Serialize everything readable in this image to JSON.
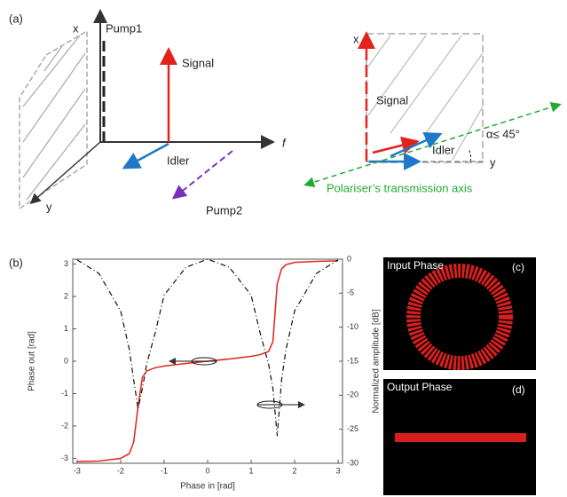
{
  "figure": {
    "panel_a": {
      "label": "(a)",
      "left": {
        "x_axis": "x",
        "pump1": "Pump1",
        "signal": "Signal",
        "idler": "Idler",
        "f_axis": "f",
        "y_axis": "y",
        "pump2": "Pump2"
      },
      "right": {
        "x_axis": "x",
        "signal": "Signal",
        "idler": "Idler",
        "angle": "α≤ 45°",
        "y_axis": "y",
        "polariser": "Polariser’s transmission axis"
      }
    },
    "panel_b": {
      "label": "(b)"
    },
    "panel_c": {
      "label": "(c)",
      "title": "Input Phase"
    },
    "panel_d": {
      "label": "(d)",
      "title": "Output Phase"
    }
  },
  "chart_data": {
    "type": "line",
    "xlabel": "Phase in [rad]",
    "ylabel": "Phase out [rad]",
    "y2label": "Normalized amplitude [dB]",
    "x": [
      -3,
      -2.5,
      -2,
      -1.8,
      -1.7,
      -1.6,
      -1.5,
      -1.4,
      -1.2,
      -1,
      -0.5,
      0,
      0.5,
      1,
      1.2,
      1.4,
      1.5,
      1.6,
      1.7,
      1.8,
      2,
      2.5,
      3
    ],
    "series": [
      {
        "color": "#e3231b",
        "values": [
          -3.1,
          -3.08,
          -3.0,
          -2.85,
          -2.5,
          -1.4,
          -0.5,
          -0.3,
          -0.2,
          -0.15,
          -0.07,
          0,
          0.07,
          0.15,
          0.2,
          0.3,
          0.6,
          2.4,
          2.85,
          2.98,
          3.05,
          3.08,
          3.1
        ]
      },
      {
        "color": "#111111",
        "axis": "y2",
        "values": [
          -0.1,
          -2.1,
          -7.6,
          -13.3,
          -17.7,
          -22,
          -19,
          -15.4,
          -10.7,
          -5.3,
          -1.2,
          0,
          -1.2,
          -5.3,
          -10.7,
          -15.4,
          -19,
          -26,
          -17.7,
          -13.3,
          -7.6,
          -2.1,
          -0.1
        ]
      }
    ],
    "xlim": [
      -3.1,
      3.1
    ],
    "xticks": [
      -3,
      -2,
      -1,
      0,
      1,
      2,
      3
    ],
    "ylim": [
      -3.15,
      3.15
    ],
    "yticks": [
      -3,
      -2,
      -1,
      0,
      1,
      2,
      3
    ],
    "y2lim": [
      -30,
      0
    ],
    "y2ticks": [
      0,
      -5,
      -10,
      -15,
      -20,
      -25,
      -30
    ]
  }
}
